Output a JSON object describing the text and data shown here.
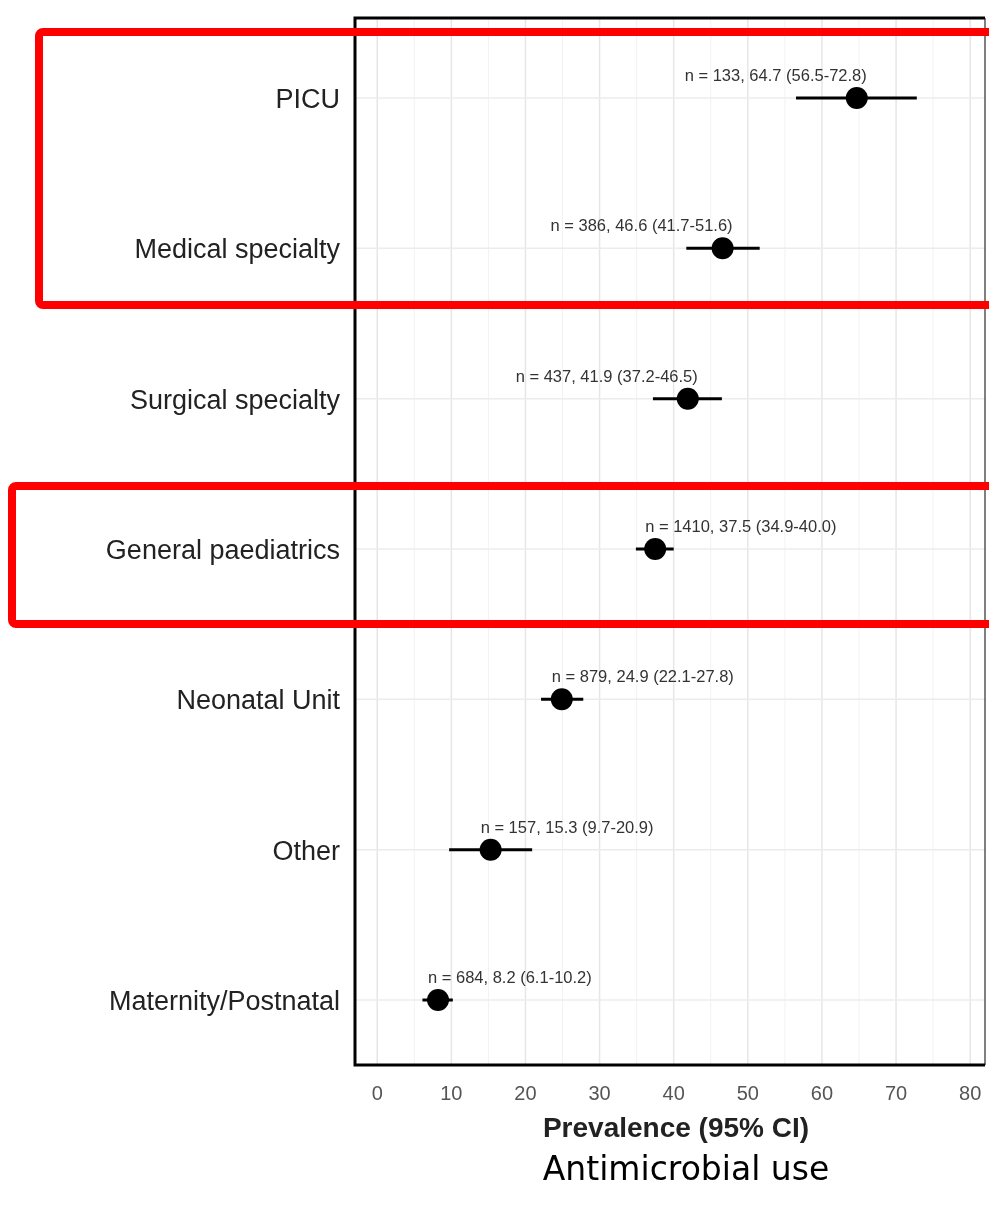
{
  "chart_data": {
    "type": "scatter",
    "orientation": "horizontal",
    "categories": [
      "PICU",
      "Medical specialty",
      "Surgical specialty",
      "General paediatrics",
      "Neonatal Unit",
      "Other",
      "Maternity/Postnatal"
    ],
    "values": [
      64.7,
      46.6,
      41.9,
      37.5,
      24.9,
      15.3,
      8.2
    ],
    "errors": [
      [
        56.5,
        72.8
      ],
      [
        41.7,
        51.6
      ],
      [
        37.2,
        46.5
      ],
      [
        34.9,
        40.0
      ],
      [
        22.1,
        27.8
      ],
      [
        9.7,
        20.9
      ],
      [
        6.1,
        10.2
      ]
    ],
    "value_labels": [
      "n = 133, 64.7 (56.5-72.8)",
      "n = 386, 46.6 (41.7-51.6)",
      "n = 437, 41.9 (37.2-46.5)",
      "n = 1410, 37.5 (34.9-40.0)",
      "n = 879, 24.9 (22.1-27.8)",
      "n = 157, 15.3 (9.7-20.9)",
      "n = 684, 8.2 (6.1-10.2)"
    ],
    "color": "#000000",
    "marker": "circle",
    "xlim": [
      -3,
      82
    ],
    "xticks": [
      0,
      10,
      20,
      30,
      40,
      50,
      60,
      70,
      80
    ],
    "xlabel": "Prevalence (95% CI)",
    "grid": true,
    "annotations": [
      "Antimicrobial use"
    ]
  }
}
